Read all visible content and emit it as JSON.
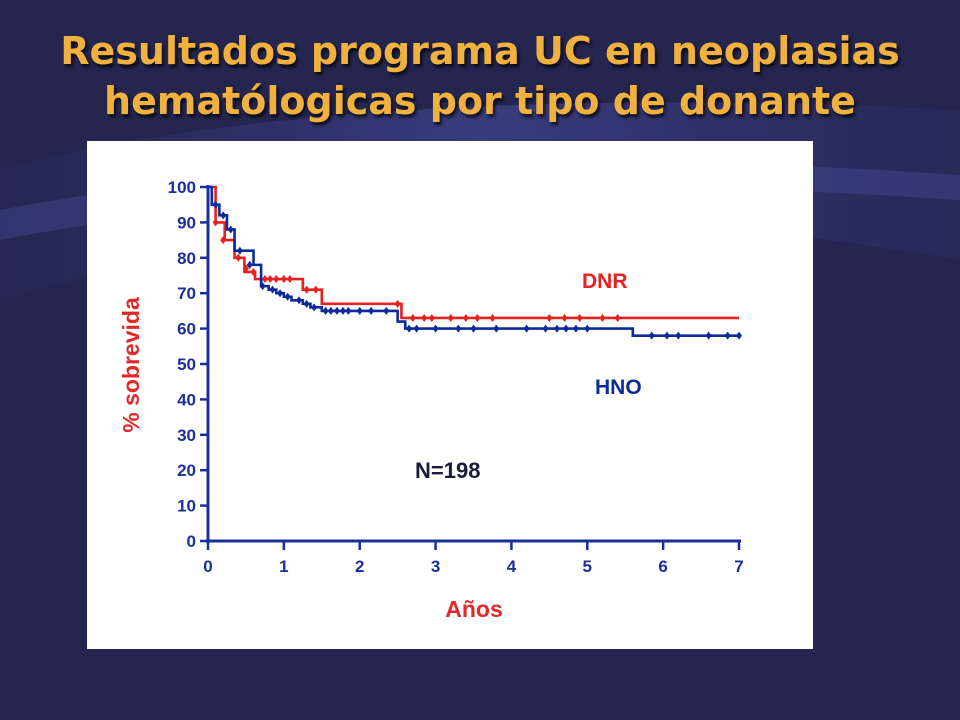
{
  "slide": {
    "title_line1": "Resultados programa UC en neoplasias",
    "title_line2": "hematólogicas por tipo de donante"
  },
  "colors": {
    "background": "#24264f",
    "title": "#f0b13f",
    "axis": "#1a2f9a",
    "axis_title": "#e02a2a",
    "dnr": "#e8201f",
    "hno": "#0c2a9c"
  },
  "chart_data": {
    "type": "line",
    "step": true,
    "xlabel": "Años",
    "ylabel": "% sobrevida",
    "xlim": [
      0,
      7
    ],
    "ylim": [
      0,
      100
    ],
    "xticks": [
      0,
      1,
      2,
      3,
      4,
      5,
      6,
      7
    ],
    "yticks": [
      0,
      10,
      20,
      30,
      40,
      50,
      60,
      70,
      80,
      90,
      100
    ],
    "grid": false,
    "annotation": "N=198",
    "series": [
      {
        "name": "DNR",
        "steps": [
          [
            0,
            100
          ],
          [
            0.1,
            90
          ],
          [
            0.22,
            85
          ],
          [
            0.35,
            80
          ],
          [
            0.48,
            76
          ],
          [
            0.62,
            74
          ],
          [
            1.25,
            71
          ],
          [
            1.5,
            67
          ],
          [
            2.55,
            63
          ],
          [
            7,
            63
          ]
        ],
        "censored": [
          [
            0.1,
            90
          ],
          [
            0.2,
            85
          ],
          [
            0.4,
            80
          ],
          [
            0.5,
            77
          ],
          [
            0.6,
            76
          ],
          [
            0.75,
            74
          ],
          [
            0.82,
            74
          ],
          [
            0.9,
            74
          ],
          [
            1.0,
            74
          ],
          [
            1.08,
            74
          ],
          [
            1.3,
            71
          ],
          [
            1.42,
            71
          ],
          [
            2.5,
            67
          ],
          [
            2.7,
            63
          ],
          [
            2.85,
            63
          ],
          [
            2.95,
            63
          ],
          [
            3.2,
            63
          ],
          [
            3.4,
            63
          ],
          [
            3.55,
            63
          ],
          [
            3.75,
            63
          ],
          [
            4.5,
            63
          ],
          [
            4.7,
            63
          ],
          [
            4.9,
            63
          ],
          [
            5.2,
            63
          ],
          [
            5.4,
            63
          ]
        ]
      },
      {
        "name": "HNO",
        "steps": [
          [
            0,
            100
          ],
          [
            0.05,
            95
          ],
          [
            0.15,
            92
          ],
          [
            0.25,
            88
          ],
          [
            0.35,
            82
          ],
          [
            0.6,
            78
          ],
          [
            0.7,
            72
          ],
          [
            0.8,
            71
          ],
          [
            0.9,
            70
          ],
          [
            1.0,
            69
          ],
          [
            1.1,
            68
          ],
          [
            1.25,
            67
          ],
          [
            1.35,
            66
          ],
          [
            1.5,
            65
          ],
          [
            2.5,
            62
          ],
          [
            2.6,
            60
          ],
          [
            5.6,
            58
          ],
          [
            7,
            58
          ]
        ],
        "censored": [
          [
            0.1,
            95
          ],
          [
            0.2,
            92
          ],
          [
            0.3,
            88
          ],
          [
            0.42,
            82
          ],
          [
            0.55,
            78
          ],
          [
            0.72,
            72
          ],
          [
            0.85,
            71
          ],
          [
            0.95,
            70
          ],
          [
            1.05,
            69
          ],
          [
            1.2,
            68
          ],
          [
            1.3,
            67
          ],
          [
            1.4,
            66
          ],
          [
            1.55,
            65
          ],
          [
            1.62,
            65
          ],
          [
            1.7,
            65
          ],
          [
            1.78,
            65
          ],
          [
            1.85,
            65
          ],
          [
            2.0,
            65
          ],
          [
            2.15,
            65
          ],
          [
            2.35,
            65
          ],
          [
            2.65,
            60
          ],
          [
            2.75,
            60
          ],
          [
            3.0,
            60
          ],
          [
            3.3,
            60
          ],
          [
            3.5,
            60
          ],
          [
            3.8,
            60
          ],
          [
            4.2,
            60
          ],
          [
            4.45,
            60
          ],
          [
            4.6,
            60
          ],
          [
            4.72,
            60
          ],
          [
            4.85,
            60
          ],
          [
            5.0,
            60
          ],
          [
            5.85,
            58
          ],
          [
            6.05,
            58
          ],
          [
            6.2,
            58
          ],
          [
            6.6,
            58
          ],
          [
            6.85,
            58
          ],
          [
            7.0,
            58
          ]
        ]
      }
    ]
  }
}
